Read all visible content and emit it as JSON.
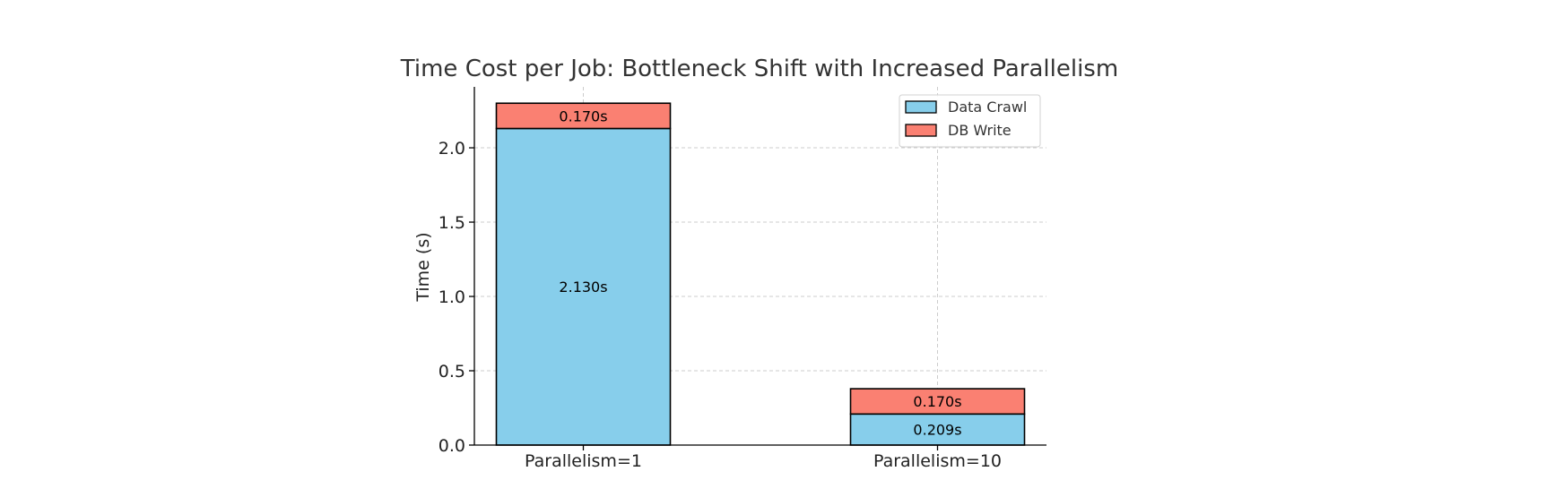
{
  "chart_data": {
    "type": "bar",
    "stacked": true,
    "title": "Time Cost per Job: Bottleneck Shift with Increased Parallelism",
    "xlabel": "",
    "ylabel": "Time (s)",
    "categories": [
      "Parallelism=1",
      "Parallelism=10"
    ],
    "series": [
      {
        "name": "Data Crawl",
        "color": "#87CEEB",
        "values": [
          2.13,
          0.209
        ],
        "labels": [
          "2.130s",
          "0.209s"
        ]
      },
      {
        "name": "DB Write",
        "color": "#FA8072",
        "values": [
          0.17,
          0.17
        ],
        "labels": [
          "0.170s",
          "0.170s"
        ]
      }
    ],
    "ylim": [
      0,
      2.41
    ],
    "yticks": [
      0.0,
      0.5,
      1.0,
      1.5,
      2.0
    ],
    "ytick_labels": [
      "0.0",
      "0.5",
      "1.0",
      "1.5",
      "2.0"
    ],
    "grid": true,
    "legend_position": "top-right",
    "edge_color": "#000000"
  }
}
